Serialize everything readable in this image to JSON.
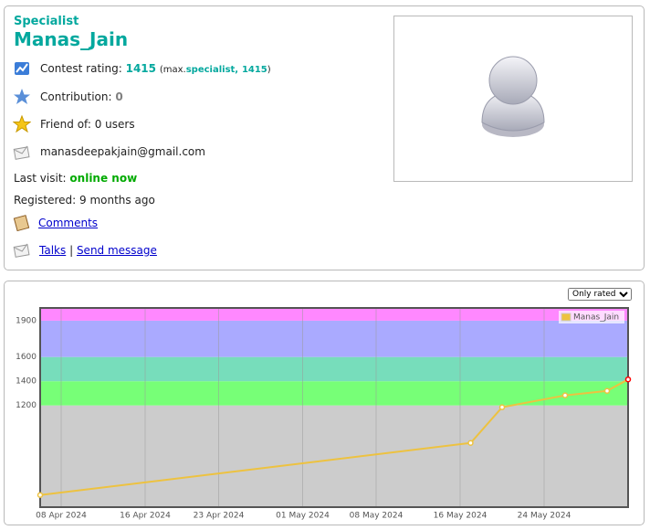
{
  "profile": {
    "rank": "Specialist",
    "handle": "Manas_Jain",
    "rating_label": "Contest rating:",
    "rating": 1415,
    "max_open": "(max.",
    "max_rank": "specialist,",
    "max_rating": 1415,
    "max_close": ")",
    "contribution_label": "Contribution:",
    "contribution": 0,
    "friend_label": "Friend of:",
    "friend_value": "0 users",
    "email": "manasdeepakjain@gmail.com",
    "last_visit_label": "Last visit:",
    "last_visit": "online now",
    "registered_label": "Registered:",
    "registered": "9 months ago",
    "comments": "Comments",
    "talks": "Talks",
    "separator": "|",
    "send_message": "Send message"
  },
  "filter": "Only rated",
  "chart_data": {
    "type": "line",
    "x": [
      "2024-04-06",
      "2024-05-17",
      "2024-05-20",
      "2024-05-26",
      "2024-05-30",
      "2024-06-01"
    ],
    "series": [
      {
        "name": "Manas_Jain",
        "color": "#edc240",
        "values": [
          460,
          890,
          1185,
          1283,
          1320,
          1415
        ]
      }
    ],
    "last_point_color": "#ff0000",
    "xlim": [
      "2024-04-06",
      "2024-06-01"
    ],
    "xticks": [
      {
        "value": "2024-04-08",
        "label": "08 Apr 2024"
      },
      {
        "value": "2024-04-16",
        "label": "16 Apr 2024"
      },
      {
        "value": "2024-04-23",
        "label": "23 Apr 2024"
      },
      {
        "value": "2024-05-01",
        "label": "01 May 2024"
      },
      {
        "value": "2024-05-08",
        "label": "08 May 2024"
      },
      {
        "value": "2024-05-16",
        "label": "16 May 2024"
      },
      {
        "value": "2024-05-24",
        "label": "24 May 2024"
      }
    ],
    "ylim": [
      360,
      2005
    ],
    "yticks": [
      1200,
      1400,
      1600,
      1900
    ],
    "band_edges": [
      1200,
      1400,
      1600,
      1900
    ],
    "band_colors": [
      "#cccccc",
      "#77ff77",
      "#77ddbb",
      "#aaaaff",
      "#ff88ff"
    ],
    "grid": true,
    "legend": "top-right"
  }
}
